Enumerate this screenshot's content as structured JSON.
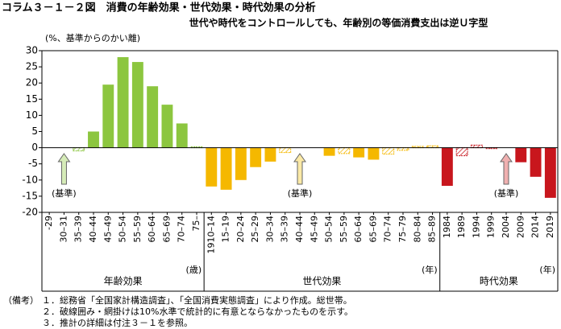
{
  "chart_data": {
    "type": "bar",
    "title": "コラム３－１－２図　消費の年齢効果・世代効果・時代効果の分析",
    "subtitle": "世代や時代をコントロールしても、年齢別の等価消費支出は逆Ｕ字型",
    "y_label": "(%、基準からのかい離)",
    "ylim": [
      -20,
      30
    ],
    "yticks": [
      -20,
      -15,
      -10,
      -5,
      0,
      5,
      10,
      15,
      20,
      25,
      30
    ],
    "groups": [
      {
        "name": "年齢効果",
        "unit": "(歳)",
        "baseline_label": "(基準)",
        "baseline_index": 1,
        "color": "#8cc63f",
        "arrow_color": "#d6ecb8",
        "categories": [
          "-29",
          "30–31",
          "35–39",
          "40–44",
          "45–49",
          "50–54",
          "55–59",
          "60–64",
          "65–69",
          "70–74",
          "75–"
        ],
        "values": [
          0,
          0,
          -1,
          5,
          19.5,
          28,
          26.5,
          19,
          13.3,
          7.5,
          0.3
        ],
        "hatched": [
          false,
          false,
          true,
          false,
          false,
          false,
          false,
          false,
          false,
          false,
          true
        ]
      },
      {
        "name": "世代効果",
        "unit": "(年)",
        "baseline_label": "(基準)",
        "baseline_index": 6,
        "color": "#f5b800",
        "arrow_color": "#fbe9a6",
        "categories": [
          "1910–14",
          "15–19",
          "20–24",
          "25–29",
          "30–34",
          "35–39",
          "40–44",
          "45–49",
          "50–54",
          "55–59",
          "60–64",
          "65–69",
          "70–74",
          "75–79",
          "80–84",
          "85–89"
        ],
        "values": [
          -12,
          -13,
          -10,
          -6,
          -4.3,
          -1.5,
          0,
          0,
          -2.5,
          -1.8,
          -3,
          -3.7,
          -2,
          -0.8,
          0.4,
          0.6
        ],
        "hatched": [
          false,
          false,
          false,
          false,
          false,
          true,
          false,
          false,
          false,
          true,
          false,
          false,
          true,
          true,
          true,
          true
        ]
      },
      {
        "name": "時代効果",
        "unit": "(年)",
        "baseline_label": "(基準)",
        "baseline_index": 4,
        "color": "#c8161d",
        "arrow_color": "#f0b0b0",
        "categories": [
          "1984",
          "1989",
          "1994",
          "1999",
          "2004",
          "2009",
          "2014",
          "2019"
        ],
        "values": [
          -11.8,
          -2.5,
          0.8,
          -0.3,
          0,
          -4.5,
          -9,
          -15.5
        ],
        "hatched": [
          false,
          true,
          true,
          true,
          false,
          false,
          false,
          false
        ]
      }
    ]
  },
  "notes": {
    "label": "（備考）",
    "lines": [
      "１．総務省「全国家計構造調査」、「全国消費実態調査」により作成。総世帯。",
      "２．破線囲み・網掛けは10%水準で統計的に有意とならなかったものを示す。",
      "３．推計の詳細は付注３－１を参照。"
    ]
  }
}
